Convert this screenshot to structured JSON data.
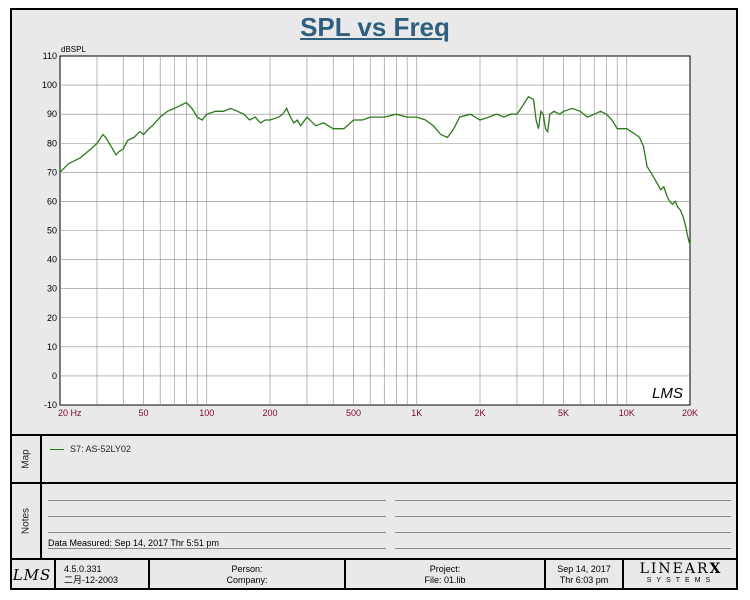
{
  "chart_data": {
    "type": "line",
    "title": "SPL vs Freq",
    "ylabel": "dBSPL",
    "xlabel": "",
    "x_scale": "log",
    "xlim": [
      20,
      20000
    ],
    "ylim": [
      -10,
      110
    ],
    "y_ticks": [
      "110",
      "100",
      "90",
      "80",
      "70",
      "60",
      "50",
      "40",
      "30",
      "20",
      "10",
      "0",
      "-10"
    ],
    "x_ticks": [
      {
        "label": "20  Hz",
        "value": 20
      },
      {
        "label": "50",
        "value": 50
      },
      {
        "label": "100",
        "value": 100
      },
      {
        "label": "200",
        "value": 200
      },
      {
        "label": "500",
        "value": 500
      },
      {
        "label": "1K",
        "value": 1000
      },
      {
        "label": "2K",
        "value": 2000
      },
      {
        "label": "5K",
        "value": 5000
      },
      {
        "label": "10K",
        "value": 10000
      },
      {
        "label": "20K",
        "value": 20000
      }
    ],
    "grid": true,
    "watermark": "LMS",
    "series": [
      {
        "name": "S7: AS-52LY02",
        "color": "#2a7a1a",
        "x": [
          20,
          22,
          25,
          28,
          30,
          32,
          33,
          35,
          37,
          38,
          40,
          42,
          45,
          48,
          50,
          53,
          55,
          60,
          65,
          70,
          75,
          80,
          85,
          90,
          95,
          100,
          110,
          120,
          130,
          140,
          150,
          160,
          170,
          180,
          190,
          200,
          220,
          230,
          240,
          250,
          260,
          270,
          280,
          300,
          330,
          360,
          400,
          450,
          500,
          550,
          600,
          700,
          800,
          900,
          1000,
          1100,
          1200,
          1300,
          1400,
          1500,
          1600,
          1800,
          2000,
          2200,
          2400,
          2600,
          2800,
          3000,
          3200,
          3400,
          3600,
          3700,
          3800,
          3900,
          4000,
          4100,
          4200,
          4300,
          4500,
          4800,
          5000,
          5500,
          6000,
          6500,
          7000,
          7500,
          8000,
          8500,
          9000,
          9500,
          10000,
          10500,
          11000,
          11500,
          12000,
          12500,
          13000,
          13500,
          14000,
          14500,
          15000,
          15500,
          16000,
          16500,
          17000,
          17500,
          18000,
          18500,
          19000,
          19500,
          20000
        ],
        "values": [
          70,
          73,
          75,
          78,
          80,
          83,
          82,
          79,
          76,
          77,
          78,
          81,
          82,
          84,
          83,
          85,
          86,
          89,
          91,
          92,
          93,
          94,
          92,
          89,
          88,
          90,
          91,
          91,
          92,
          91,
          90,
          88,
          89,
          87,
          88,
          88,
          89,
          90,
          92,
          89,
          87,
          88,
          86,
          89,
          86,
          87,
          85,
          85,
          88,
          88,
          89,
          89,
          90,
          89,
          89,
          88,
          86,
          83,
          82,
          85,
          89,
          90,
          88,
          89,
          90,
          89,
          90,
          90,
          93,
          96,
          95,
          88,
          85,
          91,
          90,
          85,
          84,
          90,
          91,
          90,
          91,
          92,
          91,
          89,
          90,
          91,
          90,
          88,
          85,
          85,
          85,
          84,
          83,
          82,
          79,
          72,
          70,
          68,
          66,
          64,
          65,
          62,
          60,
          59,
          60,
          58,
          57,
          55,
          52,
          48,
          45
        ]
      }
    ]
  },
  "map_panel": {
    "label": "Map",
    "legend_entry": "S7: AS-52LY02"
  },
  "notes_panel": {
    "label": "Notes",
    "data_measured": "Data Measured: Sep 14, 2017  Thr  5:51 pm"
  },
  "footer": {
    "logo": "LMS",
    "version": "4.5.0.331",
    "version_date": "二月-12-2003",
    "person_label": "Person:",
    "company_label": "Company:",
    "project_label": "Project:",
    "file_label": "File: 01.lib",
    "date": "Sep 14, 2017",
    "time": "Thr  6:03 pm",
    "brand_main": "LINEAR",
    "brand_x": "X",
    "brand_sub": "SYSTEMS"
  },
  "colors": {
    "title": "#2f5f7f",
    "trace": "#2a7a1a",
    "tick_labels": "#7a0a2a"
  }
}
